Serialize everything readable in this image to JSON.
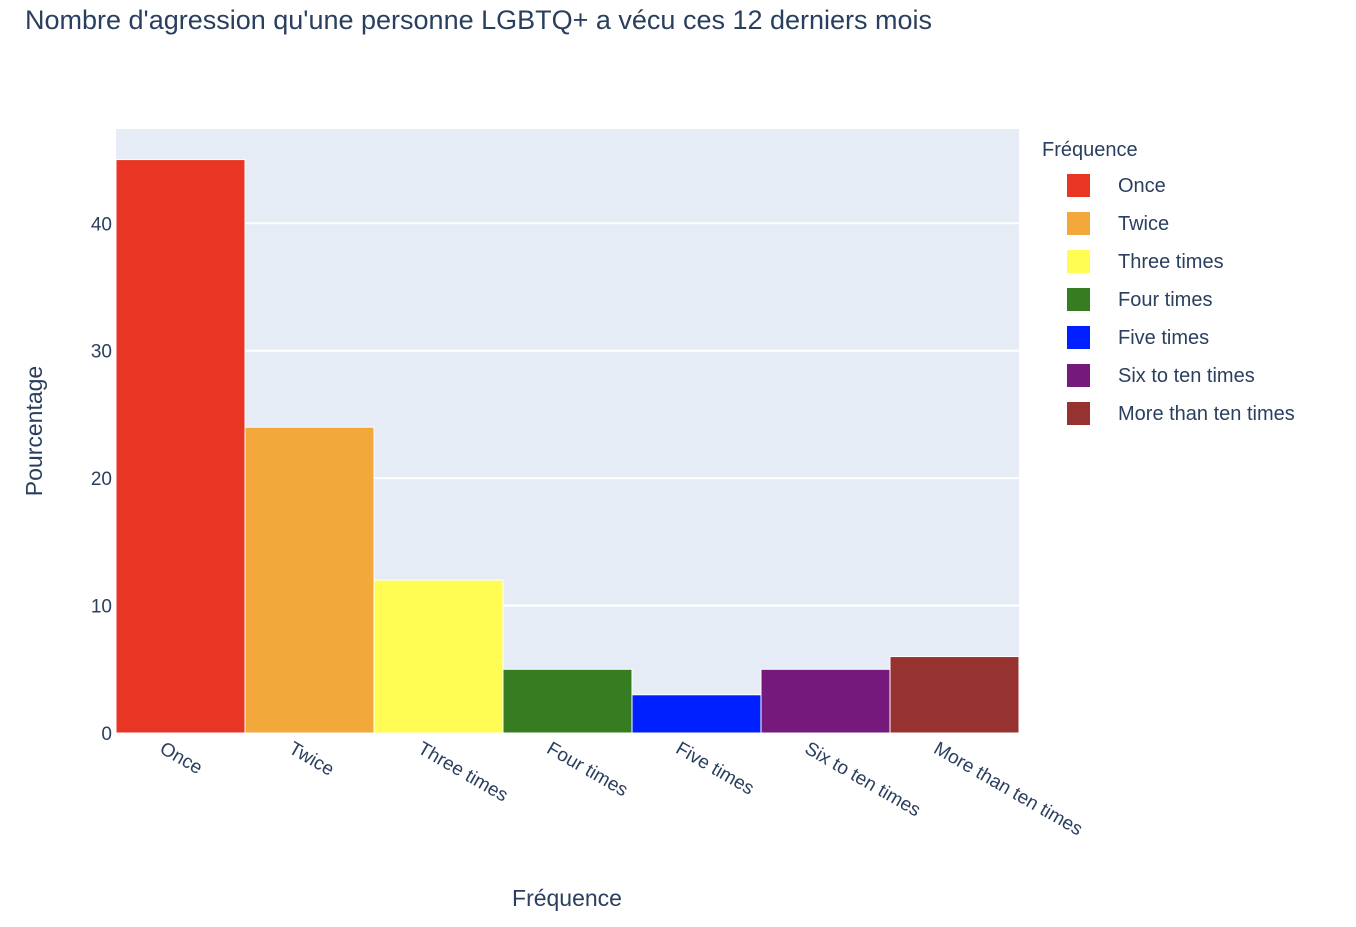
{
  "chart_data": {
    "type": "bar",
    "title": "Nombre d'agression qu'une personne LGBTQ+ a vécu ces 12 derniers mois",
    "xlabel": "Fréquence",
    "ylabel": "Pourcentage",
    "categories": [
      "Once",
      "Twice",
      "Three times",
      "Four times",
      "Five times",
      "Six to ten times",
      "More than ten times"
    ],
    "values": [
      45,
      24,
      12,
      5,
      3,
      5,
      6
    ],
    "colors": [
      "#e83524",
      "#f2a83b",
      "#fffd54",
      "#367c21",
      "#0020ff",
      "#751a7c",
      "#963330"
    ],
    "ylim": [
      0,
      47.4
    ],
    "yticks": [
      0,
      10,
      20,
      30,
      40
    ],
    "grid": true,
    "legend": {
      "title": "Fréquence",
      "placement": "right"
    }
  }
}
